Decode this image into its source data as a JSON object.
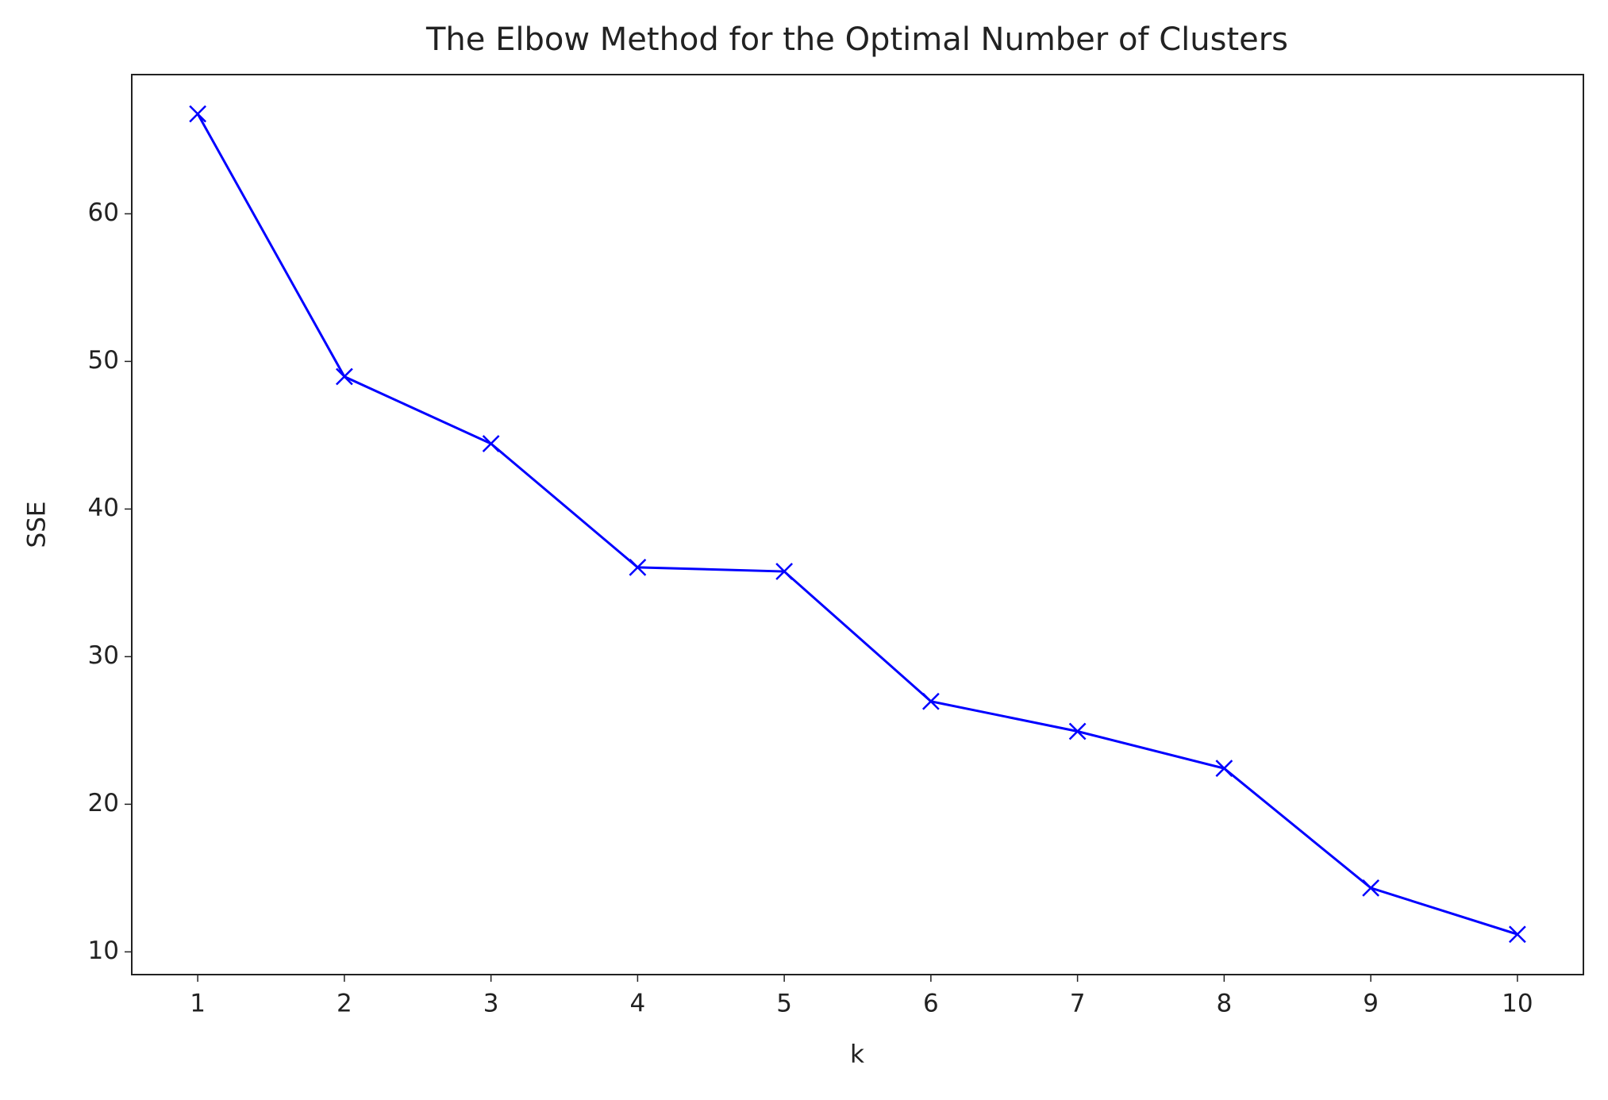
{
  "chart_data": {
    "type": "line",
    "title": "The Elbow Method for the Optimal Number of Clusters",
    "x_label": "k",
    "y_label": "SSE",
    "x": [
      1,
      2,
      3,
      4,
      5,
      6,
      7,
      8,
      9,
      10
    ],
    "series": [
      {
        "name": "SSE",
        "color": "#0000ff",
        "marker": "x",
        "values": [
          66.77,
          48.97,
          44.43,
          36.05,
          35.77,
          26.97,
          24.94,
          22.43,
          14.33,
          11.19
        ]
      }
    ],
    "xlim": [
      0.55,
      10.45
    ],
    "xticks": [
      1,
      2,
      3,
      4,
      5,
      6,
      7,
      8,
      9,
      10
    ],
    "ylim": [
      8.46,
      69.43
    ],
    "yticks": [
      10,
      20,
      30,
      40,
      50,
      60
    ],
    "grid": false
  }
}
